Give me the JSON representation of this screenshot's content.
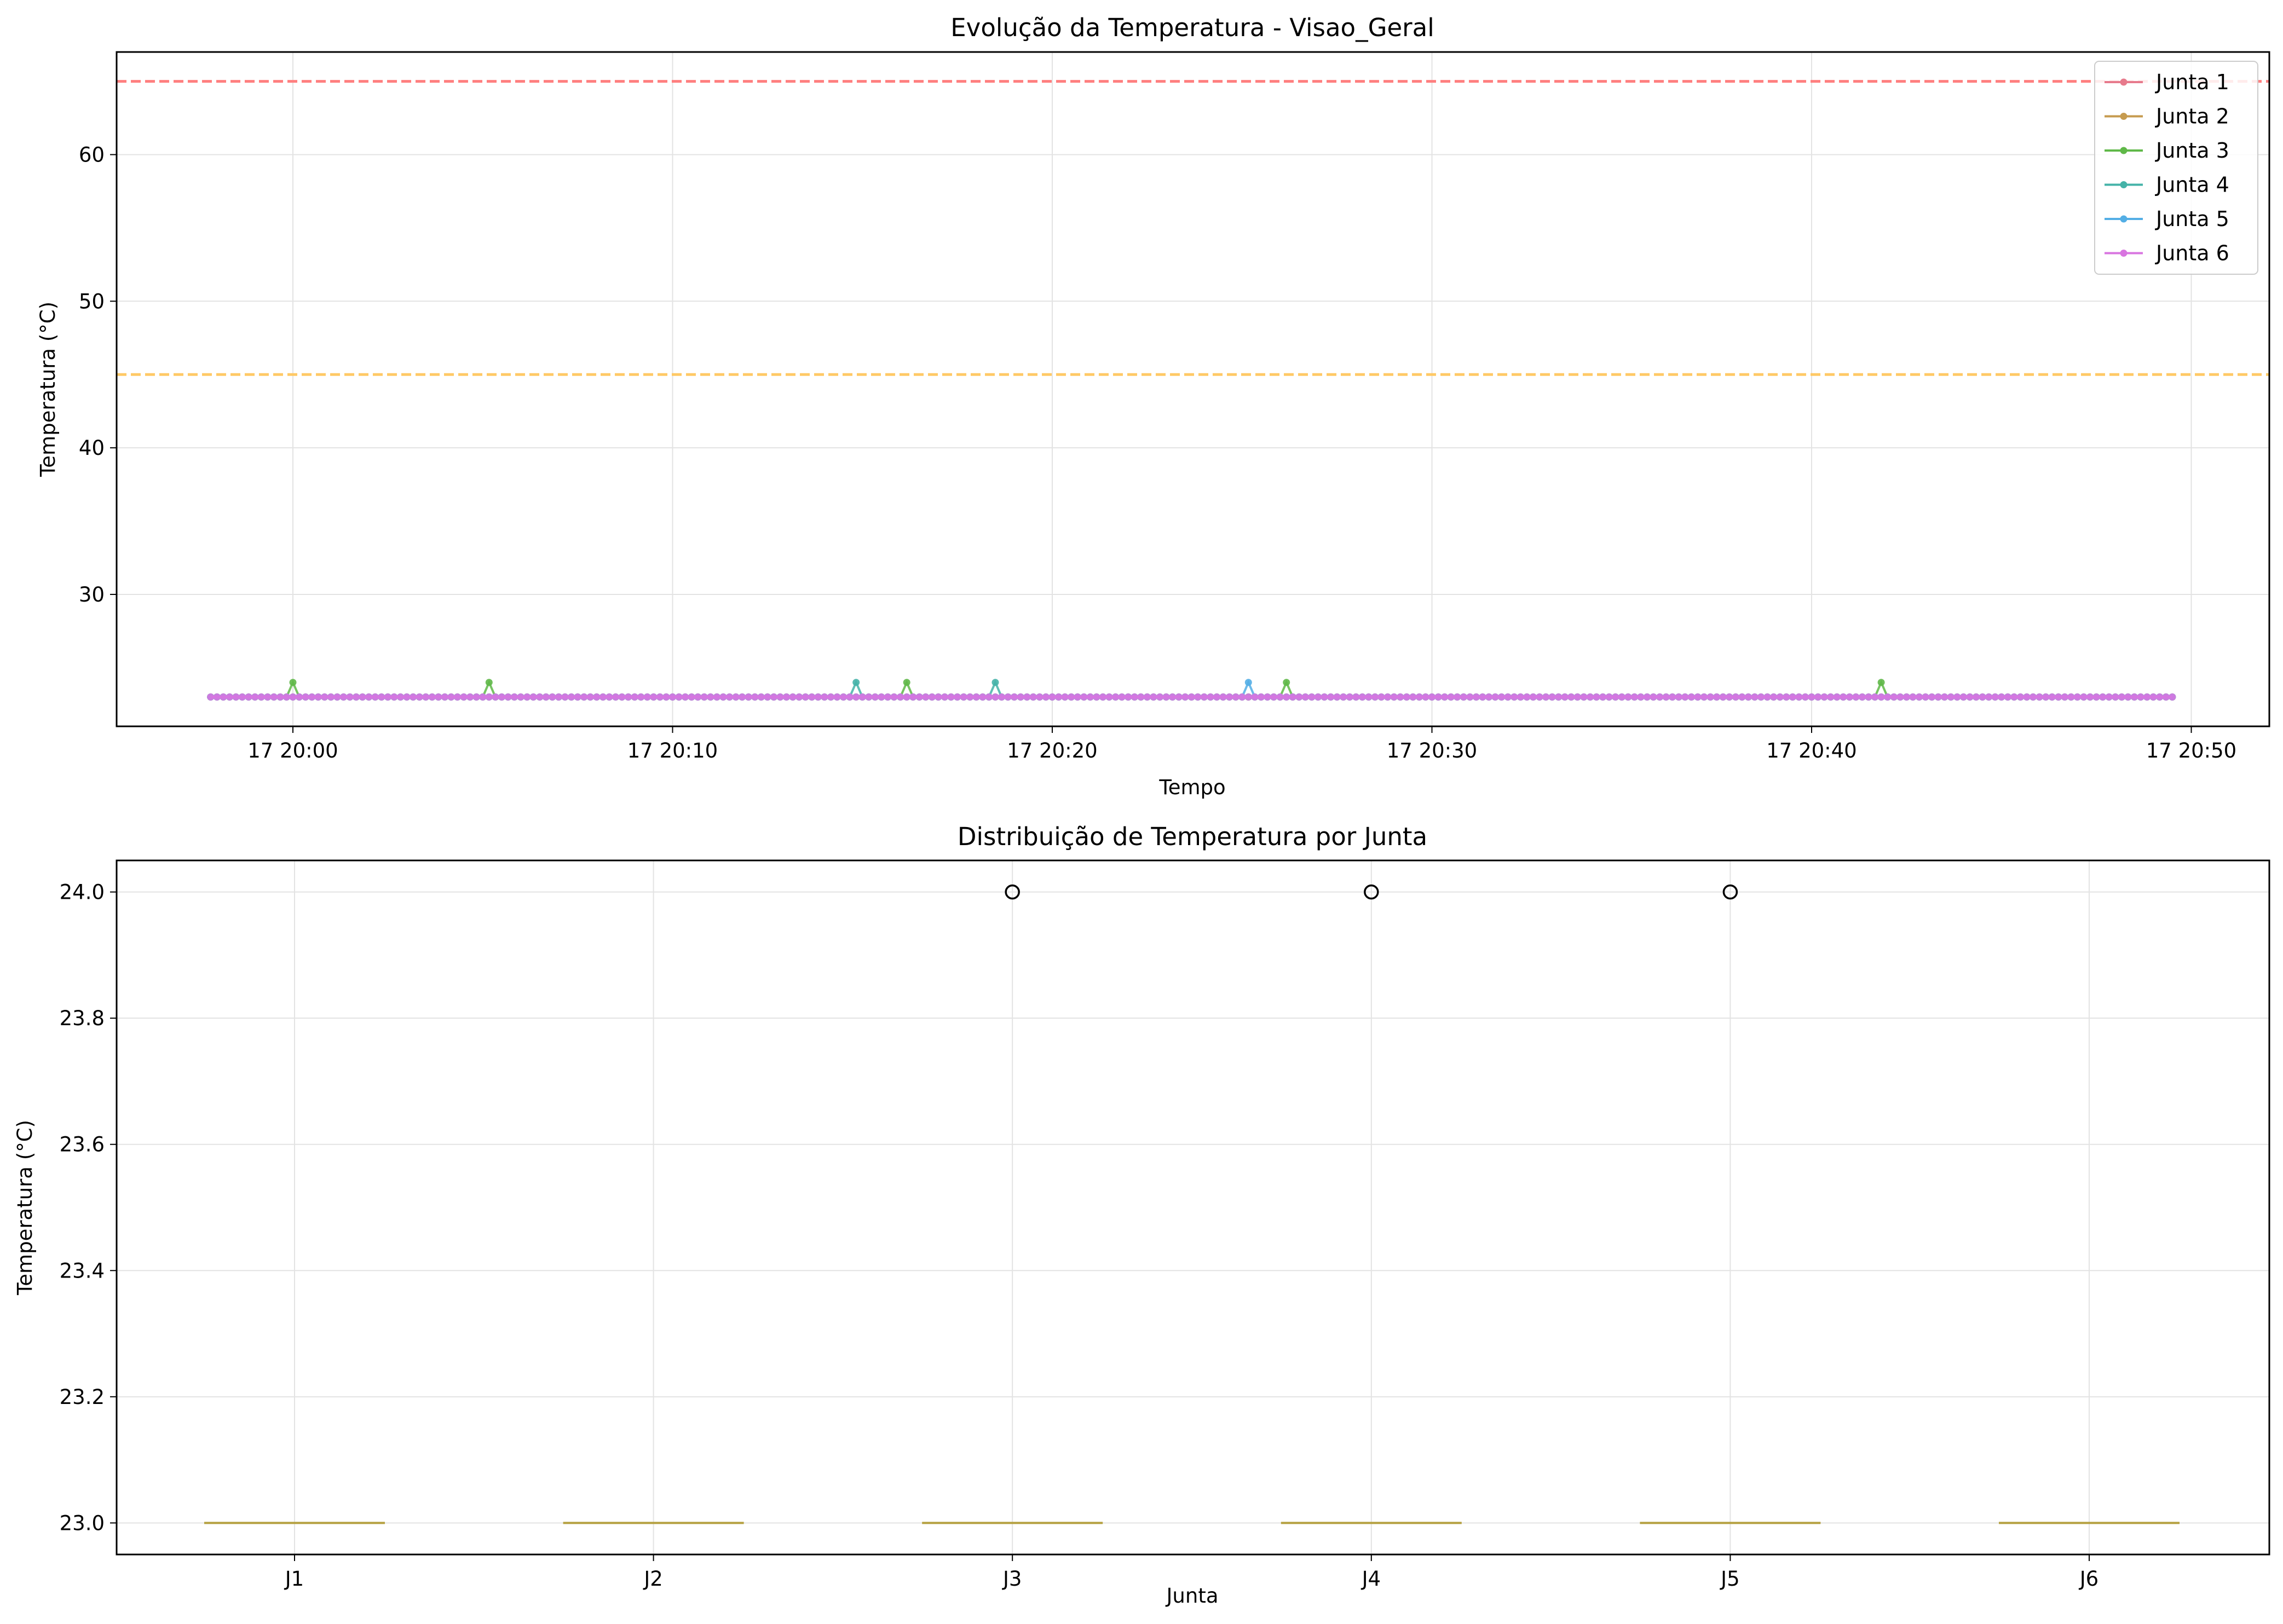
{
  "chart_data": [
    {
      "type": "line",
      "title": "Evolução da Temperatura - Visao_Geral",
      "xlabel": "Tempo",
      "ylabel": "Temperatura (°C)",
      "x_start": "17 19:57:50",
      "x_end": "17 20:49:30",
      "x_ticks": [
        "17 20:00",
        "17 20:10",
        "17 20:20",
        "17 20:30",
        "17 20:40",
        "17 20:50"
      ],
      "x_tick_minutes": [
        0,
        10,
        20,
        30,
        40,
        50
      ],
      "y_ticks": [
        "30",
        "40",
        "50",
        "60"
      ],
      "ylim": [
        21,
        67
      ],
      "grid": true,
      "legend_position": "top-right",
      "threshold_lines": [
        {
          "value": 65,
          "color": "#ff7f7f",
          "style": "dashed"
        },
        {
          "value": 45,
          "color": "#ffc966",
          "style": "dashed"
        }
      ],
      "baseline_value": 23,
      "series": [
        {
          "name": "Junta 1",
          "color": "#e77a8c",
          "baseline": 23,
          "spikes": []
        },
        {
          "name": "Junta 2",
          "color": "#c69b4f",
          "baseline": 23,
          "spikes": []
        },
        {
          "name": "Junta 3",
          "color": "#5fb848",
          "baseline": 23,
          "spikes": [
            "17 20:00:05",
            "17 20:05:10",
            "17 20:16:05",
            "17 20:26:15",
            "17 20:41:45"
          ],
          "spike_value": 24
        },
        {
          "name": "Junta 4",
          "color": "#45b3a8",
          "baseline": 23,
          "spikes": [
            "17 20:14:45",
            "17 20:18:30"
          ],
          "spike_value": 24
        },
        {
          "name": "Junta 5",
          "color": "#53aee5",
          "baseline": 23,
          "spikes": [
            "17 20:25:15"
          ],
          "spike_value": 24
        },
        {
          "name": "Junta 6",
          "color": "#d875e0",
          "baseline": 23,
          "spikes": []
        }
      ]
    },
    {
      "type": "box",
      "title": "Distribuição de Temperatura por Junta",
      "xlabel": "Junta",
      "ylabel": "Temperatura (°C)",
      "categories": [
        "J1",
        "J2",
        "J3",
        "J4",
        "J5",
        "J6"
      ],
      "y_ticks": [
        "23.0",
        "23.2",
        "23.4",
        "23.6",
        "23.8",
        "24.0"
      ],
      "ylim": [
        22.95,
        24.05
      ],
      "grid": true,
      "median": 23.0,
      "box_color": "#b5a040",
      "outliers": [
        {
          "category": "J3",
          "value": 24.0
        },
        {
          "category": "J4",
          "value": 24.0
        },
        {
          "category": "J5",
          "value": 24.0
        }
      ]
    }
  ]
}
